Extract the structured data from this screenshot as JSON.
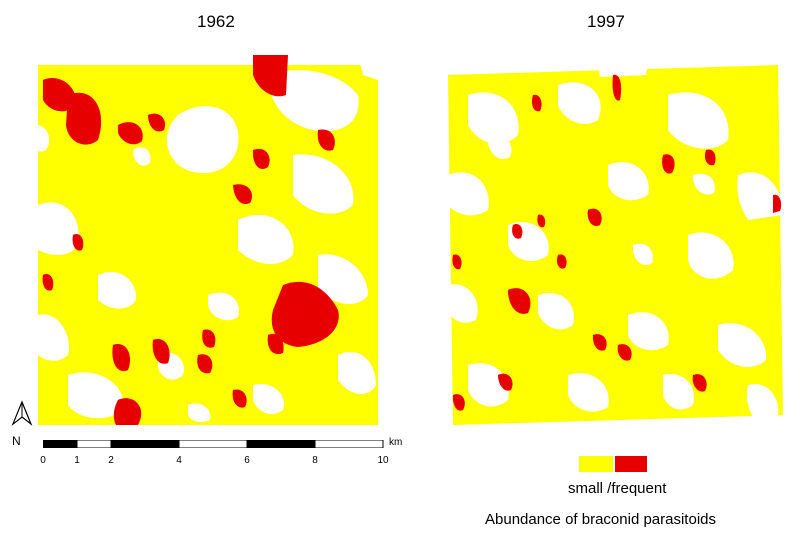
{
  "maps": {
    "left": {
      "year": "1962"
    },
    "right": {
      "year": "1997"
    }
  },
  "colors": {
    "small": "#ffff00",
    "frequent": "#e60000",
    "background": "#ffffff",
    "scale_dark": "#000000"
  },
  "north_arrow": {
    "label": "N",
    "icon": "north-arrow-icon"
  },
  "scale_bar": {
    "unit": "km",
    "ticks": [
      "0",
      "1",
      "2",
      "4",
      "6",
      "8",
      "10"
    ]
  },
  "legend": {
    "label": "small /frequent",
    "title": "Abundance of braconid parasitoids"
  }
}
